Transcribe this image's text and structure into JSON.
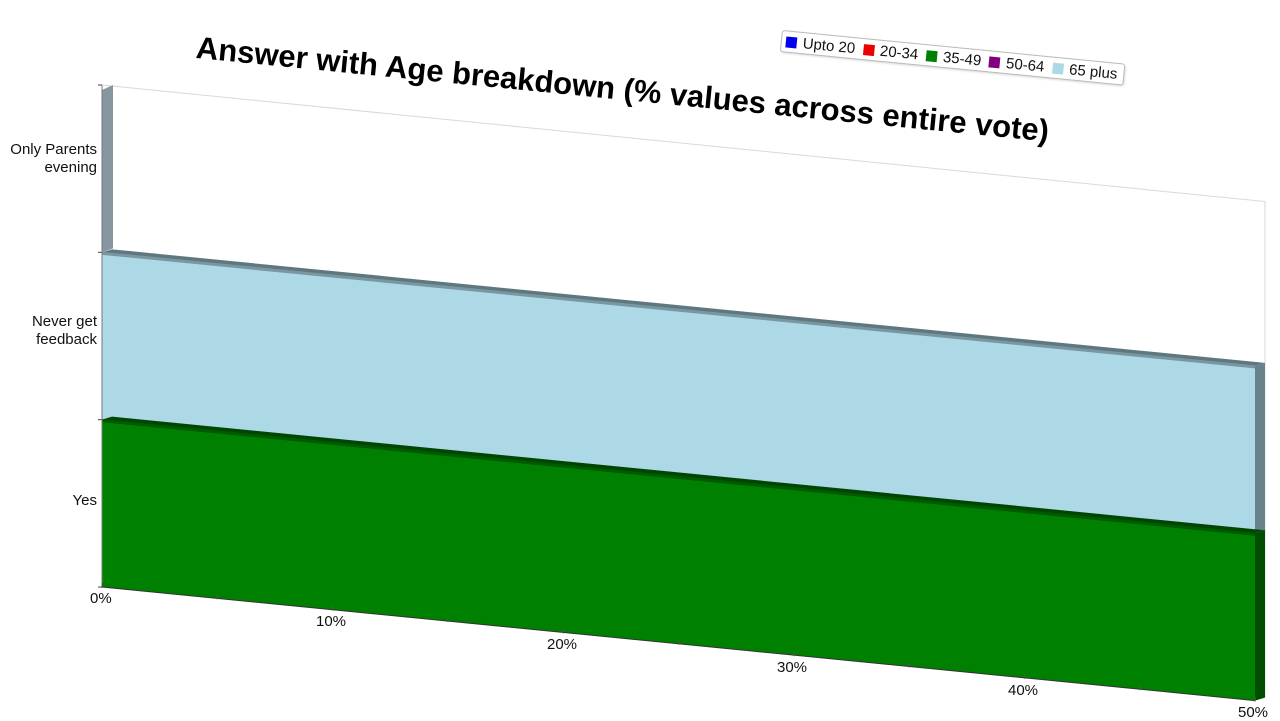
{
  "chart_data": {
    "type": "bar",
    "orientation": "horizontal",
    "stacked": true,
    "title": "Answer with Age breakdown (% values across entire vote)",
    "categories": [
      "Only Parents\nevening",
      "Never get\nfeedback",
      "Yes"
    ],
    "series": [
      {
        "name": "Upto 20",
        "color": "#0000ee",
        "values": [
          0,
          0,
          0
        ]
      },
      {
        "name": "20-34",
        "color": "#ee0000",
        "values": [
          0,
          0,
          0
        ]
      },
      {
        "name": "35-49",
        "color": "#008000",
        "values": [
          0,
          0,
          50
        ]
      },
      {
        "name": "50-64",
        "color": "#800080",
        "values": [
          0,
          0,
          0
        ]
      },
      {
        "name": "65 plus",
        "color": "#add8e6",
        "values": [
          0,
          50,
          0
        ]
      }
    ],
    "x_ticks": [
      "0%",
      "10%",
      "20%",
      "30%",
      "40%",
      "50%"
    ],
    "xlim": [
      0,
      50
    ],
    "legend_position": "top-right",
    "grid": false
  }
}
